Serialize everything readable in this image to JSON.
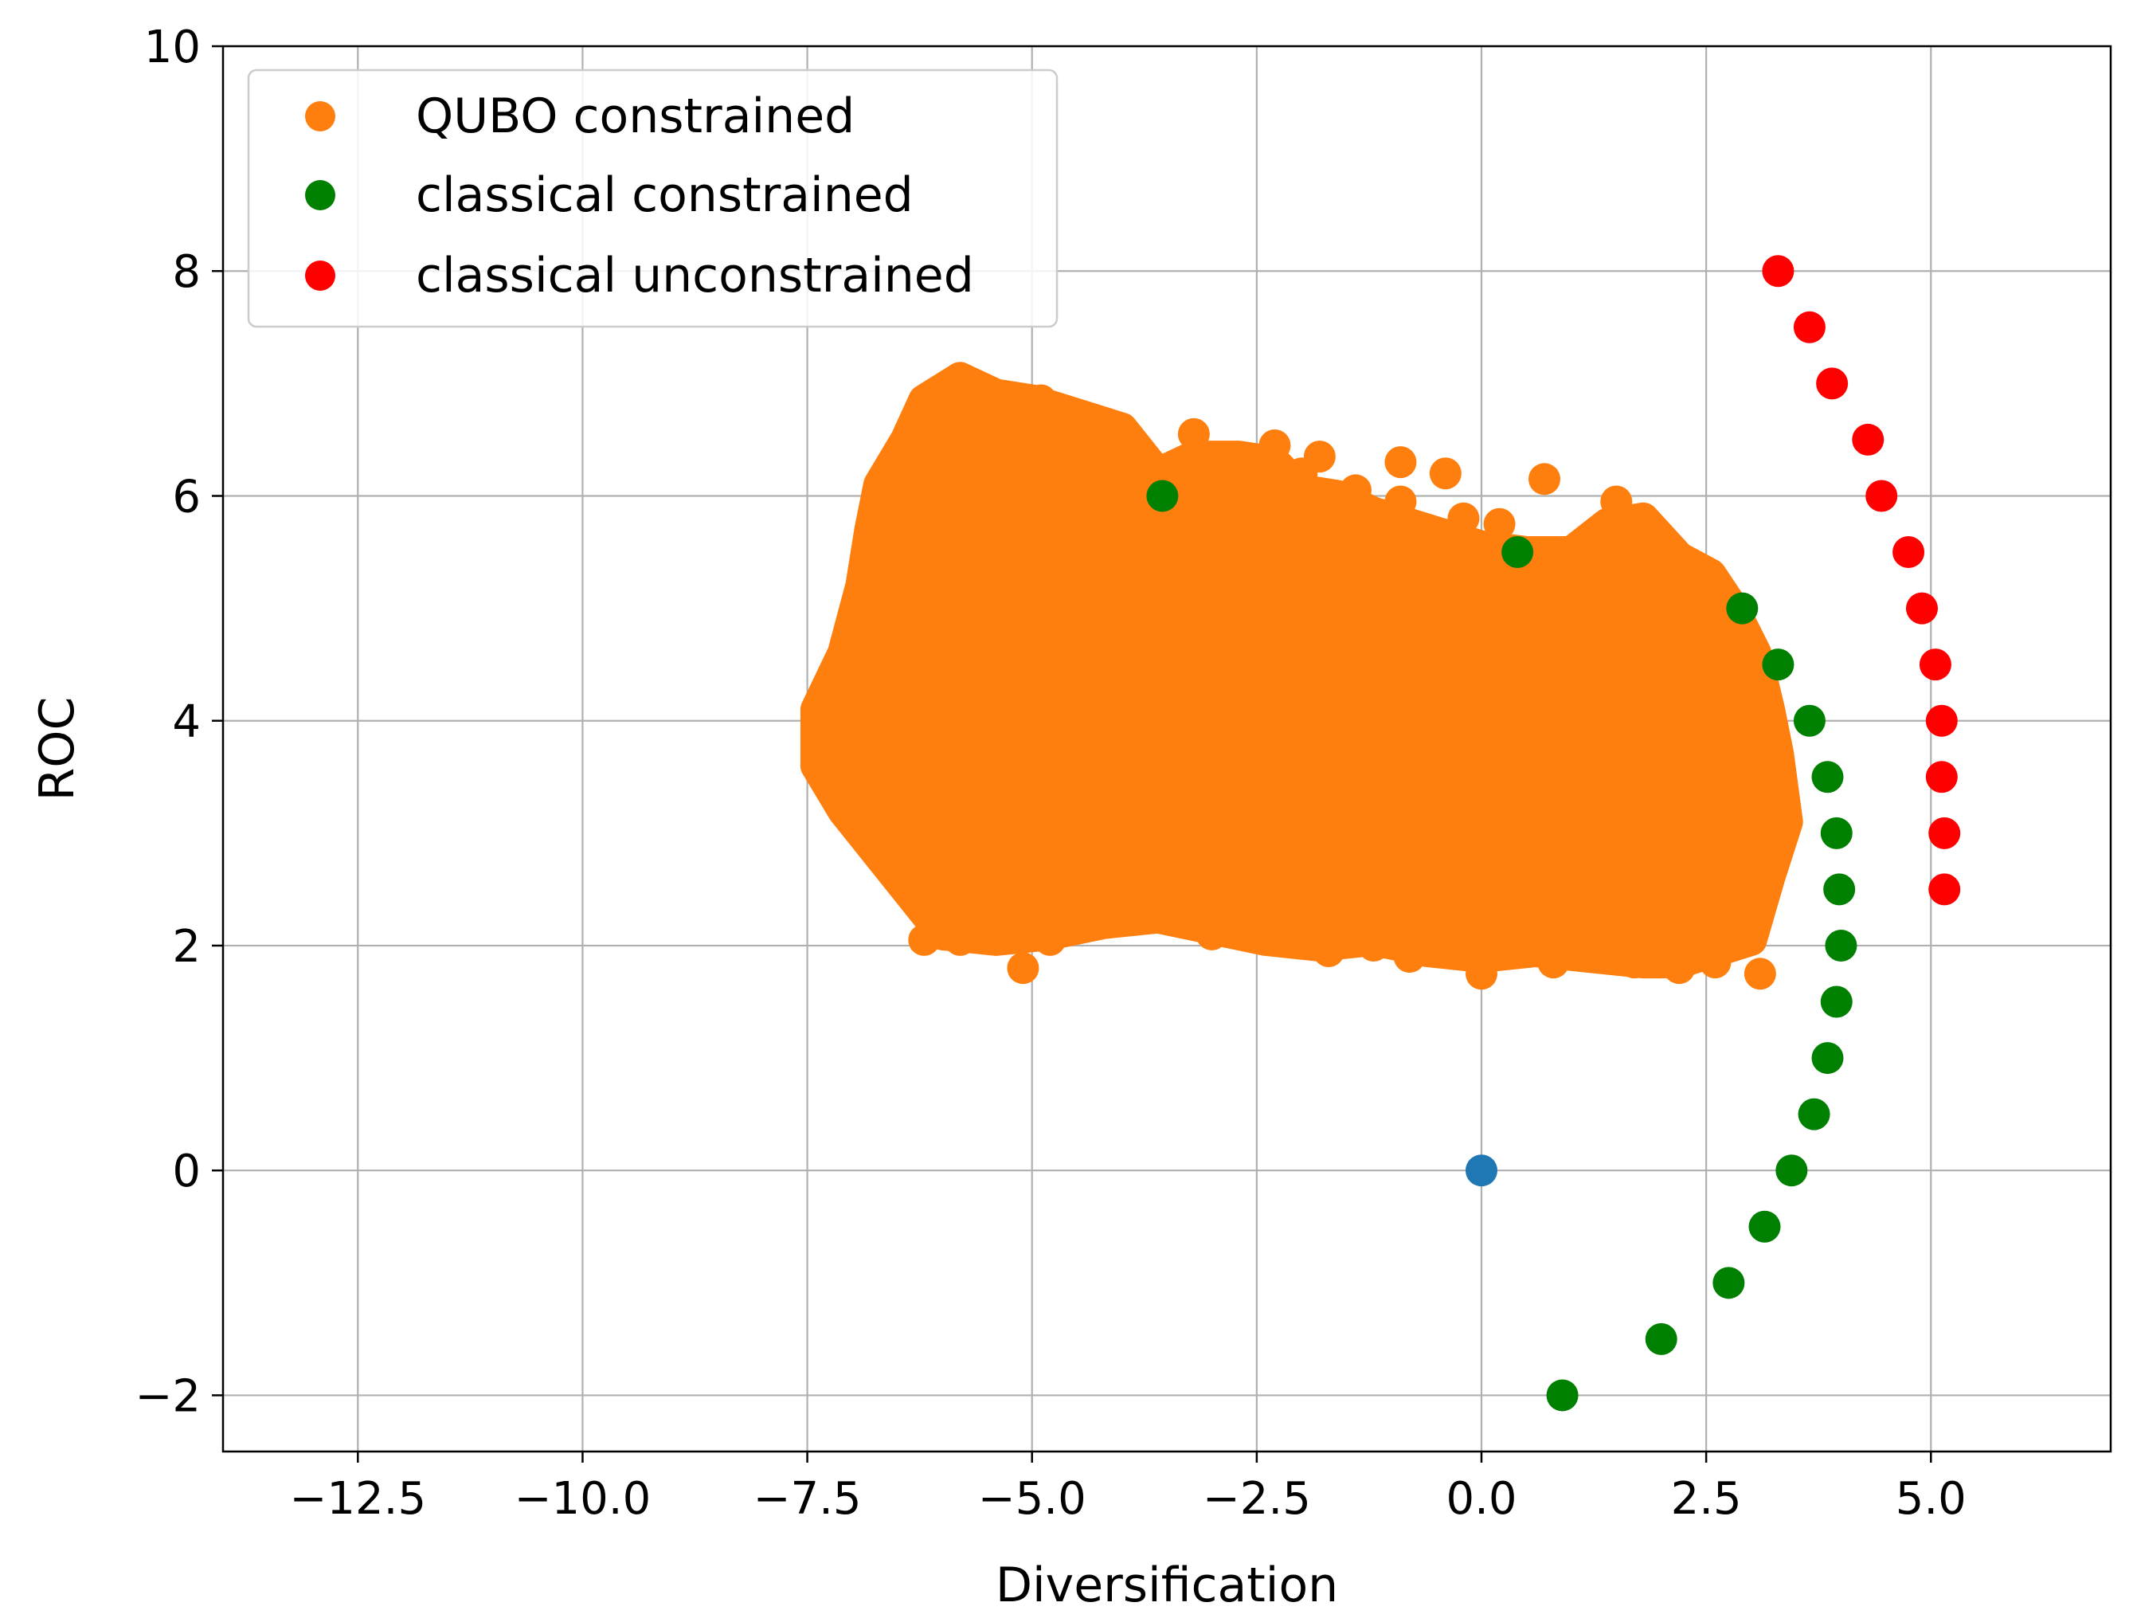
{
  "chart_data": {
    "type": "scatter",
    "title": "",
    "xlabel": "Diversification",
    "ylabel": "ROC",
    "xlim": [
      -14,
      7
    ],
    "ylim": [
      -2.5,
      10
    ],
    "grid": true,
    "legend_placement": "top-left",
    "xticks": [
      {
        "value": -12.5,
        "label": "−12.5"
      },
      {
        "value": -10.0,
        "label": "−10.0"
      },
      {
        "value": -7.5,
        "label": "−7.5"
      },
      {
        "value": -5.0,
        "label": "−5.0"
      },
      {
        "value": -2.5,
        "label": "−2.5"
      },
      {
        "value": 0.0,
        "label": "0.0"
      },
      {
        "value": 2.5,
        "label": "2.5"
      },
      {
        "value": 5.0,
        "label": "5.0"
      }
    ],
    "yticks": [
      {
        "value": -2,
        "label": "−2"
      },
      {
        "value": 0,
        "label": "0"
      },
      {
        "value": 2,
        "label": "2"
      },
      {
        "value": 4,
        "label": "4"
      },
      {
        "value": 6,
        "label": "6"
      },
      {
        "value": 8,
        "label": "8"
      },
      {
        "value": 10,
        "label": "10"
      }
    ],
    "series": [
      {
        "name": "QUBO constrained",
        "color": "#ff7f0e",
        "in_legend": true,
        "outline": [
          [
            -7.4,
            3.6
          ],
          [
            -7.4,
            4.1
          ],
          [
            -7.1,
            4.6
          ],
          [
            -6.9,
            5.2
          ],
          [
            -6.8,
            5.7
          ],
          [
            -6.7,
            6.1
          ],
          [
            -6.4,
            6.5
          ],
          [
            -6.2,
            6.85
          ],
          [
            -5.8,
            7.05
          ],
          [
            -5.4,
            6.9
          ],
          [
            -5.0,
            6.85
          ],
          [
            -4.6,
            6.75
          ],
          [
            -4.0,
            6.6
          ],
          [
            -3.6,
            6.2
          ],
          [
            -3.2,
            6.35
          ],
          [
            -2.7,
            6.35
          ],
          [
            -2.3,
            6.3
          ],
          [
            -2.0,
            6.05
          ],
          [
            -1.6,
            6.0
          ],
          [
            -1.2,
            5.85
          ],
          [
            -0.8,
            5.75
          ],
          [
            -0.4,
            5.65
          ],
          [
            0.0,
            5.55
          ],
          [
            0.5,
            5.5
          ],
          [
            1.0,
            5.5
          ],
          [
            1.4,
            5.75
          ],
          [
            1.8,
            5.8
          ],
          [
            2.2,
            5.45
          ],
          [
            2.55,
            5.3
          ],
          [
            2.8,
            5.0
          ],
          [
            3.05,
            4.6
          ],
          [
            3.2,
            4.1
          ],
          [
            3.3,
            3.7
          ],
          [
            3.4,
            3.1
          ],
          [
            3.2,
            2.6
          ],
          [
            3.0,
            2.05
          ],
          [
            2.6,
            1.95
          ],
          [
            2.2,
            1.85
          ],
          [
            1.8,
            1.85
          ],
          [
            1.2,
            1.9
          ],
          [
            0.6,
            1.95
          ],
          [
            0.0,
            1.9
          ],
          [
            -0.6,
            1.95
          ],
          [
            -1.2,
            2.05
          ],
          [
            -1.8,
            2.0
          ],
          [
            -2.4,
            2.05
          ],
          [
            -3.0,
            2.15
          ],
          [
            -3.6,
            2.25
          ],
          [
            -4.2,
            2.2
          ],
          [
            -4.8,
            2.1
          ],
          [
            -5.4,
            2.05
          ],
          [
            -6.0,
            2.1
          ],
          [
            -6.4,
            2.5
          ],
          [
            -6.8,
            2.9
          ],
          [
            -7.1,
            3.2
          ]
        ],
        "x": [
          -7.4,
          -7.35,
          -6.7,
          -6.2,
          -5.8,
          -5.1,
          -4.9,
          -4.8,
          -4.5,
          -4.2,
          -3.8,
          -3.2,
          -3.0,
          -2.8,
          -2.6,
          -2.3,
          -2.2,
          -2.0,
          -1.8,
          -1.7,
          -1.5,
          -1.4,
          -1.2,
          -0.9,
          -0.9,
          -0.8,
          -0.5,
          -0.4,
          -0.3,
          -0.2,
          0.0,
          0.2,
          0.7,
          0.8,
          1.2,
          1.5,
          1.7,
          2.0,
          2.2,
          2.6,
          3.1,
          3.2
        ],
        "y": [
          3.6,
          4.1,
          2.8,
          2.05,
          2.05,
          1.8,
          6.85,
          2.05,
          6.7,
          6.6,
          6.2,
          6.55,
          2.1,
          6.3,
          6.2,
          6.45,
          2.1,
          6.2,
          6.35,
          1.95,
          5.9,
          6.05,
          2.0,
          6.3,
          5.95,
          1.9,
          5.55,
          6.2,
          1.95,
          5.8,
          1.75,
          5.75,
          6.15,
          1.85,
          5.5,
          5.95,
          1.85,
          5.55,
          1.8,
          1.85,
          1.75,
          2.9
        ]
      },
      {
        "name": "classical constrained",
        "color": "#008000",
        "in_legend": true,
        "x": [
          -3.55,
          0.4,
          2.9,
          3.3,
          3.65,
          3.85,
          3.95,
          3.98,
          4.0,
          3.95,
          3.85,
          3.7,
          3.45,
          3.15,
          2.75,
          2.0,
          0.9
        ],
        "y": [
          6.0,
          5.5,
          5.0,
          4.5,
          4.0,
          3.5,
          3.0,
          2.5,
          2.0,
          1.5,
          1.0,
          0.5,
          0.0,
          -0.5,
          -1.0,
          -1.5,
          -2.0
        ]
      },
      {
        "name": "classical unconstrained",
        "color": "#ff0000",
        "in_legend": true,
        "x": [
          3.3,
          3.65,
          3.9,
          4.3,
          4.45,
          4.75,
          4.9,
          5.05,
          5.12,
          5.12,
          5.15,
          5.15
        ],
        "y": [
          8.0,
          7.5,
          7.0,
          6.5,
          6.0,
          5.5,
          5.0,
          4.5,
          4.0,
          3.5,
          3.0,
          2.5
        ]
      },
      {
        "name": "origin",
        "color": "#1f77b4",
        "in_legend": false,
        "x": [
          0.0
        ],
        "y": [
          0.0
        ]
      }
    ]
  }
}
